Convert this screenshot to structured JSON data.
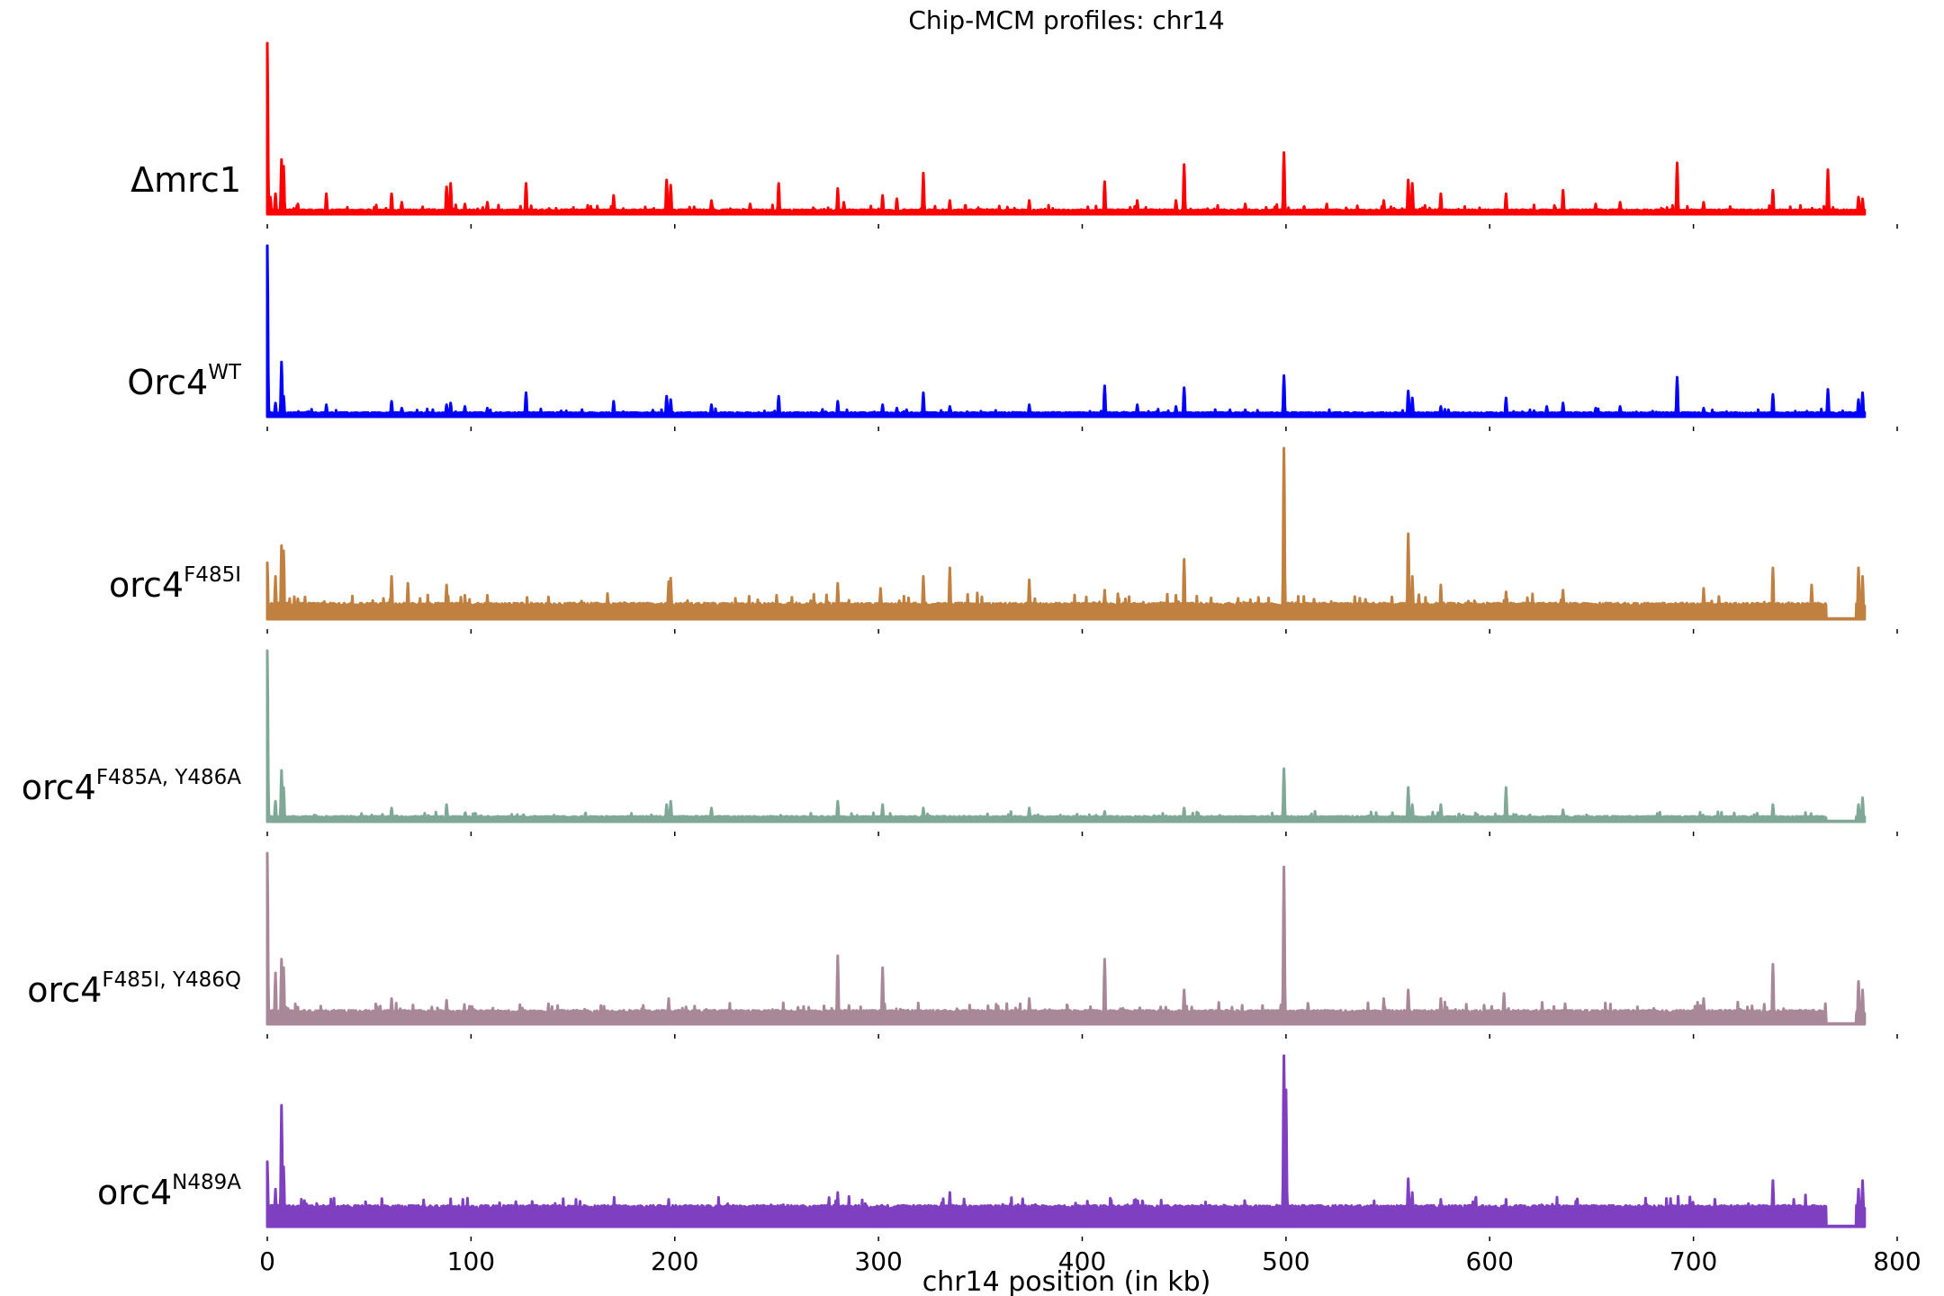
{
  "chart_data": {
    "type": "line",
    "title": "Chip-MCM profiles: chr14",
    "xlabel": "chr14 position (in kb)",
    "xlim": [
      0,
      800
    ],
    "xticks": [
      "0",
      "100",
      "200",
      "300",
      "400",
      "500",
      "600",
      "700",
      "800"
    ],
    "data_end_kb": 784,
    "grid": false,
    "series": [
      {
        "name": "Δmrc1",
        "name_base": "Δmrc1",
        "name_sup": "",
        "color": "#ff0000",
        "baseline": 0.015,
        "noise": 0.012,
        "gap": null,
        "peaks": [
          [
            0,
            1.0
          ],
          [
            1.5,
            0.1
          ],
          [
            4,
            0.12
          ],
          [
            7,
            0.32
          ],
          [
            8,
            0.28
          ],
          [
            15,
            0.06
          ],
          [
            29,
            0.12
          ],
          [
            61,
            0.12
          ],
          [
            66,
            0.07
          ],
          [
            88,
            0.16
          ],
          [
            90,
            0.18
          ],
          [
            97,
            0.06
          ],
          [
            108,
            0.07
          ],
          [
            127,
            0.18
          ],
          [
            170,
            0.11
          ],
          [
            196,
            0.2
          ],
          [
            198,
            0.17
          ],
          [
            218,
            0.08
          ],
          [
            237,
            0.06
          ],
          [
            251,
            0.18
          ],
          [
            280,
            0.15
          ],
          [
            283,
            0.07
          ],
          [
            302,
            0.11
          ],
          [
            309,
            0.09
          ],
          [
            322,
            0.24
          ],
          [
            335,
            0.08
          ],
          [
            374,
            0.08
          ],
          [
            411,
            0.19
          ],
          [
            427,
            0.08
          ],
          [
            446,
            0.08
          ],
          [
            450,
            0.29
          ],
          [
            480,
            0.06
          ],
          [
            499,
            0.36
          ],
          [
            520,
            0.06
          ],
          [
            548,
            0.08
          ],
          [
            560,
            0.2
          ],
          [
            562,
            0.18
          ],
          [
            576,
            0.12
          ],
          [
            608,
            0.12
          ],
          [
            636,
            0.14
          ],
          [
            652,
            0.06
          ],
          [
            664,
            0.07
          ],
          [
            692,
            0.3
          ],
          [
            705,
            0.07
          ],
          [
            739,
            0.14
          ],
          [
            766,
            0.26
          ],
          [
            781,
            0.1
          ],
          [
            783,
            0.09
          ]
        ]
      },
      {
        "name": "Orc4WT",
        "name_base": "Orc4",
        "name_sup": "WT",
        "color": "#0000ff",
        "baseline": 0.015,
        "noise": 0.01,
        "gap": null,
        "peaks": [
          [
            0,
            1.0
          ],
          [
            4,
            0.08
          ],
          [
            7,
            0.32
          ],
          [
            8,
            0.12
          ],
          [
            29,
            0.07
          ],
          [
            61,
            0.09
          ],
          [
            66,
            0.05
          ],
          [
            88,
            0.07
          ],
          [
            90,
            0.08
          ],
          [
            97,
            0.06
          ],
          [
            108,
            0.05
          ],
          [
            127,
            0.14
          ],
          [
            170,
            0.09
          ],
          [
            196,
            0.12
          ],
          [
            198,
            0.1
          ],
          [
            218,
            0.07
          ],
          [
            251,
            0.12
          ],
          [
            280,
            0.09
          ],
          [
            302,
            0.07
          ],
          [
            309,
            0.05
          ],
          [
            322,
            0.14
          ],
          [
            335,
            0.06
          ],
          [
            374,
            0.07
          ],
          [
            411,
            0.18
          ],
          [
            427,
            0.07
          ],
          [
            446,
            0.06
          ],
          [
            450,
            0.17
          ],
          [
            480,
            0.04
          ],
          [
            499,
            0.24
          ],
          [
            560,
            0.15
          ],
          [
            562,
            0.11
          ],
          [
            576,
            0.06
          ],
          [
            608,
            0.11
          ],
          [
            628,
            0.06
          ],
          [
            636,
            0.08
          ],
          [
            652,
            0.05
          ],
          [
            664,
            0.06
          ],
          [
            692,
            0.23
          ],
          [
            705,
            0.05
          ],
          [
            739,
            0.13
          ],
          [
            766,
            0.16
          ],
          [
            781,
            0.1
          ],
          [
            783,
            0.14
          ]
        ]
      },
      {
        "name": "orc4F485I",
        "name_base": "orc4",
        "name_sup": "F485I",
        "color": "#c08040",
        "baseline": 0.07,
        "noise": 0.025,
        "gap": [
          765,
          780
        ],
        "peaks": [
          [
            0,
            0.33
          ],
          [
            4,
            0.25
          ],
          [
            7,
            0.43
          ],
          [
            8,
            0.4
          ],
          [
            15,
            0.12
          ],
          [
            61,
            0.25
          ],
          [
            69,
            0.21
          ],
          [
            88,
            0.2
          ],
          [
            97,
            0.14
          ],
          [
            108,
            0.14
          ],
          [
            138,
            0.13
          ],
          [
            167,
            0.15
          ],
          [
            197,
            0.22
          ],
          [
            198,
            0.24
          ],
          [
            250,
            0.14
          ],
          [
            280,
            0.21
          ],
          [
            301,
            0.18
          ],
          [
            322,
            0.25
          ],
          [
            335,
            0.3
          ],
          [
            374,
            0.23
          ],
          [
            411,
            0.17
          ],
          [
            446,
            0.14
          ],
          [
            450,
            0.35
          ],
          [
            499,
            1.0
          ],
          [
            552,
            0.13
          ],
          [
            560,
            0.5
          ],
          [
            562,
            0.25
          ],
          [
            576,
            0.2
          ],
          [
            608,
            0.16
          ],
          [
            636,
            0.17
          ],
          [
            705,
            0.18
          ],
          [
            739,
            0.3
          ],
          [
            758,
            0.2
          ],
          [
            781,
            0.3
          ],
          [
            783,
            0.25
          ]
        ]
      },
      {
        "name": "orc4F485A, Y486A",
        "name_base": "orc4",
        "name_sup": "F485A, Y486A",
        "color": "#80a898",
        "baseline": 0.02,
        "noise": 0.012,
        "gap": [
          765,
          780
        ],
        "peaks": [
          [
            0,
            1.0
          ],
          [
            4,
            0.12
          ],
          [
            7,
            0.3
          ],
          [
            8,
            0.2
          ],
          [
            61,
            0.08
          ],
          [
            88,
            0.1
          ],
          [
            97,
            0.05
          ],
          [
            196,
            0.1
          ],
          [
            198,
            0.12
          ],
          [
            218,
            0.08
          ],
          [
            280,
            0.12
          ],
          [
            302,
            0.1
          ],
          [
            322,
            0.08
          ],
          [
            374,
            0.08
          ],
          [
            411,
            0.06
          ],
          [
            450,
            0.08
          ],
          [
            499,
            0.31
          ],
          [
            560,
            0.2
          ],
          [
            562,
            0.1
          ],
          [
            576,
            0.1
          ],
          [
            608,
            0.2
          ],
          [
            636,
            0.07
          ],
          [
            739,
            0.1
          ],
          [
            781,
            0.1
          ],
          [
            783,
            0.14
          ]
        ]
      },
      {
        "name": "orc4F485I, Y486Q",
        "name_base": "orc4",
        "name_sup": "F485I, Y486Q",
        "color": "#a88898",
        "baseline": 0.06,
        "noise": 0.022,
        "gap": [
          765,
          780
        ],
        "peaks": [
          [
            0,
            1.0
          ],
          [
            4,
            0.3
          ],
          [
            7,
            0.38
          ],
          [
            8,
            0.33
          ],
          [
            15,
            0.1
          ],
          [
            61,
            0.15
          ],
          [
            88,
            0.14
          ],
          [
            138,
            0.12
          ],
          [
            197,
            0.15
          ],
          [
            280,
            0.4
          ],
          [
            302,
            0.33
          ],
          [
            374,
            0.15
          ],
          [
            411,
            0.38
          ],
          [
            441,
            0.1
          ],
          [
            450,
            0.2
          ],
          [
            499,
            0.92
          ],
          [
            548,
            0.15
          ],
          [
            560,
            0.2
          ],
          [
            576,
            0.15
          ],
          [
            607,
            0.18
          ],
          [
            637,
            0.12
          ],
          [
            705,
            0.15
          ],
          [
            739,
            0.35
          ],
          [
            781,
            0.25
          ],
          [
            783,
            0.2
          ]
        ]
      },
      {
        "name": "orc4N489A",
        "name_base": "orc4",
        "name_sup": "N489A",
        "color": "#7e3fc0",
        "baseline": 0.1,
        "noise": 0.025,
        "gap": [
          765,
          780
        ],
        "peaks": [
          [
            0,
            0.38
          ],
          [
            4,
            0.22
          ],
          [
            7,
            0.71
          ],
          [
            8,
            0.35
          ],
          [
            96,
            0.16
          ],
          [
            197,
            0.16
          ],
          [
            280,
            0.2
          ],
          [
            335,
            0.2
          ],
          [
            499,
            1.0
          ],
          [
            500,
            0.8
          ],
          [
            560,
            0.28
          ],
          [
            562,
            0.2
          ],
          [
            576,
            0.16
          ],
          [
            608,
            0.16
          ],
          [
            739,
            0.27
          ],
          [
            781,
            0.22
          ],
          [
            783,
            0.27
          ]
        ]
      }
    ]
  }
}
